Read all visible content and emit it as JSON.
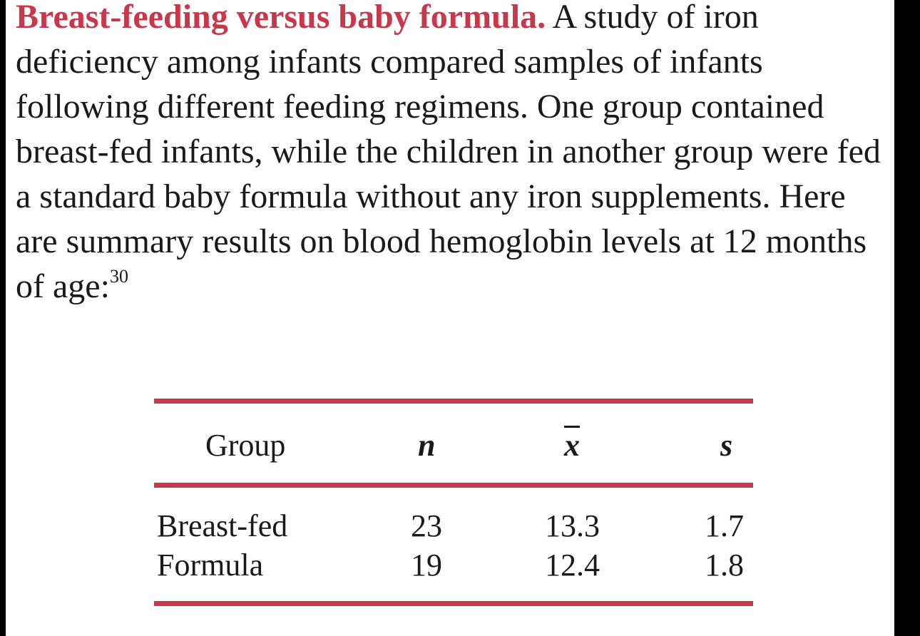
{
  "problem": {
    "lead": "Breast-feeding versus baby formula.",
    "body": "A study of iron deficiency among infants compared samples of infants following different feeding regimens. One group contained breast-fed infants, while the children in another group were fed a standard baby formula without any iron supplements. Here are summary results on blood hemoglobin levels at 12 months of age:",
    "footnote": "30"
  },
  "table": {
    "headers": {
      "group": "Group",
      "n": "n",
      "xbar": "x",
      "s": "s"
    },
    "rows": [
      {
        "group": "Breast-fed",
        "n": "23",
        "xbar": "13.3",
        "s": "1.7"
      },
      {
        "group": "Formula",
        "n": "19",
        "xbar": "12.4",
        "s": "1.8"
      }
    ]
  },
  "colors": {
    "accent": "#c8374a",
    "text": "#1a1a1a",
    "background": "#ffffff",
    "border": "#000000"
  }
}
